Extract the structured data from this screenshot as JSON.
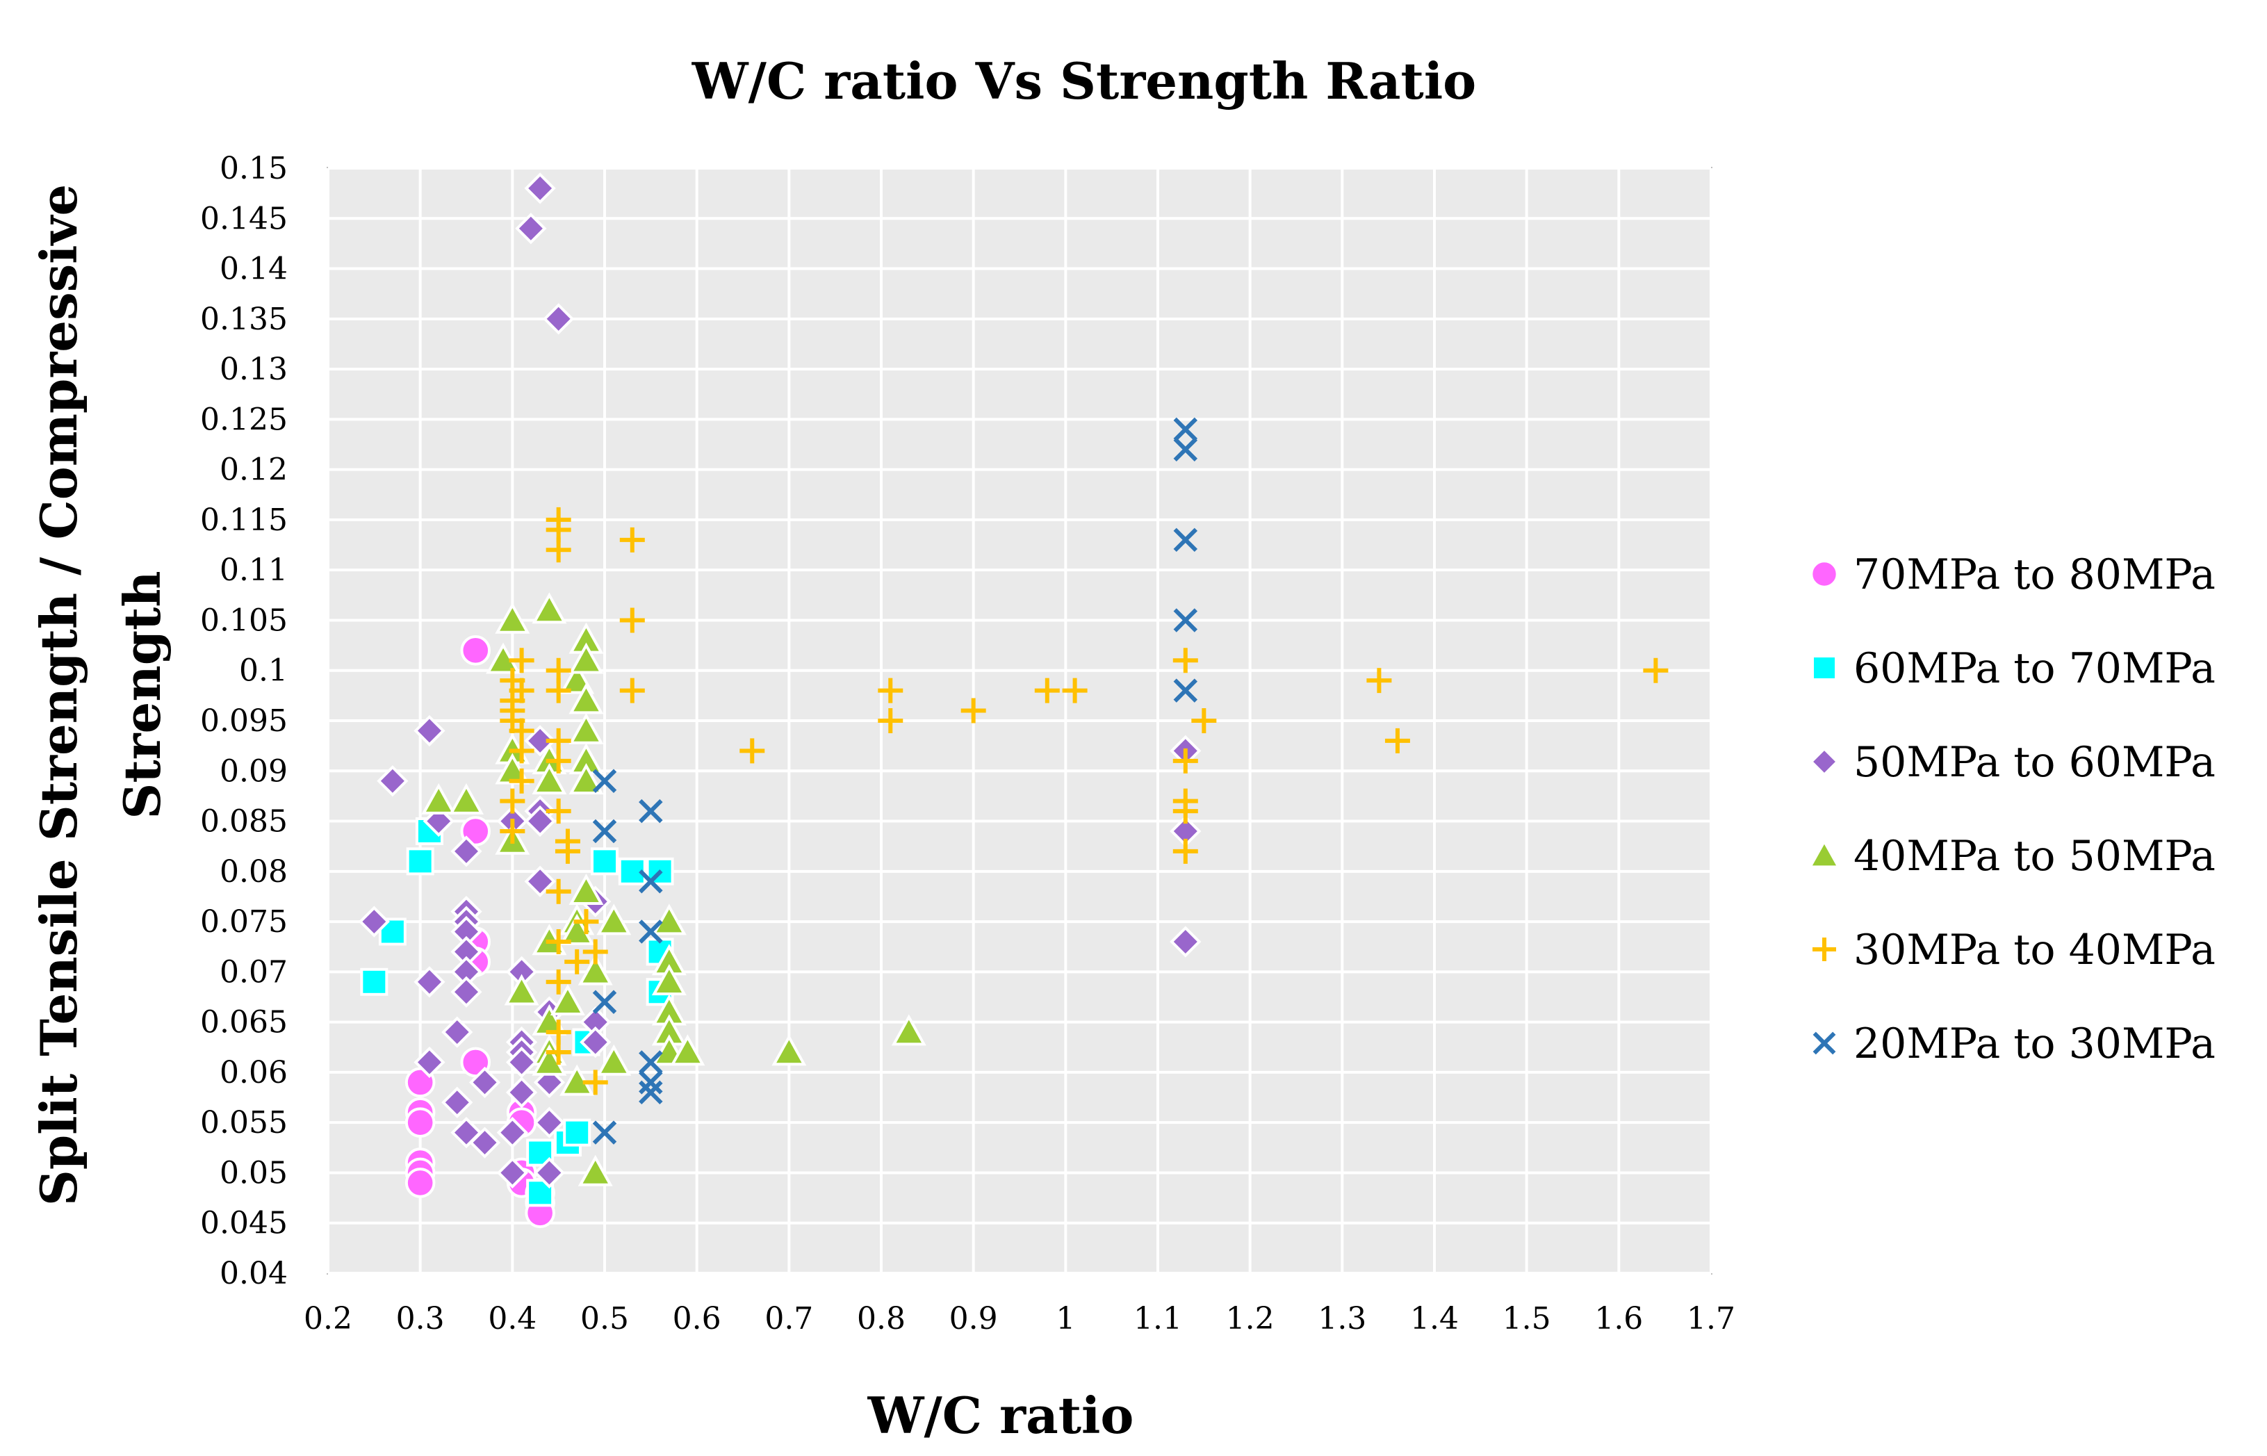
{
  "chart_data": {
    "type": "scatter",
    "title": "W/C ratio Vs Strength Ratio",
    "xlabel": "W/C ratio",
    "ylabel_lines": [
      "Split Tensile Strength / Compressive",
      "Strength"
    ],
    "xlim": [
      0.2,
      1.7
    ],
    "ylim": [
      0.04,
      0.15
    ],
    "xticks": [
      "0.2",
      "0.3",
      "0.4",
      "0.5",
      "0.6",
      "0.7",
      "0.8",
      "0.9",
      "1",
      "1.1",
      "1.2",
      "1.3",
      "1.4",
      "1.5",
      "1.6",
      "1.7"
    ],
    "yticks": [
      "0.04",
      "0.045",
      "0.05",
      "0.055",
      "0.06",
      "0.065",
      "0.07",
      "0.075",
      "0.08",
      "0.085",
      "0.09",
      "0.095",
      "0.1",
      "0.105",
      "0.11",
      "0.115",
      "0.12",
      "0.125",
      "0.13",
      "0.135",
      "0.14",
      "0.145",
      "0.15"
    ],
    "grid": true,
    "legend_position": "right",
    "series": [
      {
        "name": "70MPa to 80MPa",
        "marker": "circle",
        "color": "#FF66FF",
        "points": [
          [
            0.3,
            0.059
          ],
          [
            0.3,
            0.056
          ],
          [
            0.3,
            0.055
          ],
          [
            0.3,
            0.051
          ],
          [
            0.3,
            0.05
          ],
          [
            0.3,
            0.049
          ],
          [
            0.36,
            0.102
          ],
          [
            0.36,
            0.084
          ],
          [
            0.36,
            0.073
          ],
          [
            0.36,
            0.071
          ],
          [
            0.36,
            0.061
          ],
          [
            0.41,
            0.056
          ],
          [
            0.41,
            0.055
          ],
          [
            0.41,
            0.05
          ],
          [
            0.41,
            0.049
          ],
          [
            0.43,
            0.048
          ],
          [
            0.43,
            0.047
          ],
          [
            0.43,
            0.046
          ]
        ]
      },
      {
        "name": "60MPa to 70MPa",
        "marker": "square",
        "color": "#00FFFF",
        "points": [
          [
            0.25,
            0.069
          ],
          [
            0.27,
            0.074
          ],
          [
            0.3,
            0.081
          ],
          [
            0.31,
            0.084
          ],
          [
            0.43,
            0.052
          ],
          [
            0.43,
            0.048
          ],
          [
            0.46,
            0.053
          ],
          [
            0.47,
            0.054
          ],
          [
            0.48,
            0.063
          ],
          [
            0.5,
            0.081
          ],
          [
            0.53,
            0.08
          ],
          [
            0.56,
            0.08
          ],
          [
            0.56,
            0.072
          ],
          [
            0.56,
            0.068
          ]
        ]
      },
      {
        "name": "50MPa to 60MPa",
        "marker": "diamond",
        "color": "#9966CC",
        "points": [
          [
            0.25,
            0.075
          ],
          [
            0.27,
            0.089
          ],
          [
            0.31,
            0.094
          ],
          [
            0.31,
            0.069
          ],
          [
            0.31,
            0.061
          ],
          [
            0.32,
            0.085
          ],
          [
            0.34,
            0.064
          ],
          [
            0.34,
            0.057
          ],
          [
            0.35,
            0.082
          ],
          [
            0.35,
            0.076
          ],
          [
            0.35,
            0.075
          ],
          [
            0.35,
            0.074
          ],
          [
            0.35,
            0.072
          ],
          [
            0.35,
            0.07
          ],
          [
            0.35,
            0.068
          ],
          [
            0.35,
            0.054
          ],
          [
            0.37,
            0.059
          ],
          [
            0.37,
            0.053
          ],
          [
            0.4,
            0.085
          ],
          [
            0.4,
            0.054
          ],
          [
            0.4,
            0.05
          ],
          [
            0.41,
            0.07
          ],
          [
            0.41,
            0.063
          ],
          [
            0.41,
            0.062
          ],
          [
            0.41,
            0.061
          ],
          [
            0.41,
            0.058
          ],
          [
            0.42,
            0.144
          ],
          [
            0.43,
            0.148
          ],
          [
            0.43,
            0.093
          ],
          [
            0.43,
            0.086
          ],
          [
            0.43,
            0.085
          ],
          [
            0.43,
            0.079
          ],
          [
            0.44,
            0.066
          ],
          [
            0.44,
            0.059
          ],
          [
            0.44,
            0.055
          ],
          [
            0.44,
            0.05
          ],
          [
            0.45,
            0.135
          ],
          [
            0.49,
            0.077
          ],
          [
            0.49,
            0.065
          ],
          [
            0.49,
            0.063
          ],
          [
            1.13,
            0.092
          ],
          [
            1.13,
            0.084
          ],
          [
            1.13,
            0.073
          ]
        ]
      },
      {
        "name": "40MPa to 50MPa",
        "marker": "triangle",
        "color": "#99CC33",
        "points": [
          [
            0.32,
            0.087
          ],
          [
            0.35,
            0.087
          ],
          [
            0.39,
            0.101
          ],
          [
            0.4,
            0.105
          ],
          [
            0.4,
            0.092
          ],
          [
            0.4,
            0.09
          ],
          [
            0.4,
            0.083
          ],
          [
            0.41,
            0.068
          ],
          [
            0.44,
            0.106
          ],
          [
            0.44,
            0.091
          ],
          [
            0.44,
            0.089
          ],
          [
            0.44,
            0.073
          ],
          [
            0.44,
            0.065
          ],
          [
            0.44,
            0.062
          ],
          [
            0.44,
            0.061
          ],
          [
            0.46,
            0.067
          ],
          [
            0.47,
            0.099
          ],
          [
            0.47,
            0.075
          ],
          [
            0.47,
            0.074
          ],
          [
            0.47,
            0.059
          ],
          [
            0.48,
            0.103
          ],
          [
            0.48,
            0.101
          ],
          [
            0.48,
            0.097
          ],
          [
            0.48,
            0.094
          ],
          [
            0.48,
            0.091
          ],
          [
            0.48,
            0.089
          ],
          [
            0.48,
            0.078
          ],
          [
            0.49,
            0.07
          ],
          [
            0.49,
            0.05
          ],
          [
            0.51,
            0.075
          ],
          [
            0.51,
            0.061
          ],
          [
            0.57,
            0.075
          ],
          [
            0.57,
            0.071
          ],
          [
            0.57,
            0.069
          ],
          [
            0.57,
            0.066
          ],
          [
            0.57,
            0.064
          ],
          [
            0.57,
            0.062
          ],
          [
            0.59,
            0.062
          ],
          [
            0.7,
            0.062
          ],
          [
            0.83,
            0.064
          ]
        ]
      },
      {
        "name": "30MPa to 40MPa",
        "marker": "plus",
        "color": "#FFC000",
        "points": [
          [
            0.4,
            0.099
          ],
          [
            0.4,
            0.097
          ],
          [
            0.4,
            0.096
          ],
          [
            0.4,
            0.095
          ],
          [
            0.4,
            0.087
          ],
          [
            0.4,
            0.084
          ],
          [
            0.41,
            0.101
          ],
          [
            0.41,
            0.098
          ],
          [
            0.41,
            0.094
          ],
          [
            0.41,
            0.092
          ],
          [
            0.41,
            0.089
          ],
          [
            0.45,
            0.115
          ],
          [
            0.45,
            0.114
          ],
          [
            0.45,
            0.112
          ],
          [
            0.45,
            0.1
          ],
          [
            0.45,
            0.098
          ],
          [
            0.45,
            0.093
          ],
          [
            0.45,
            0.091
          ],
          [
            0.45,
            0.086
          ],
          [
            0.45,
            0.078
          ],
          [
            0.45,
            0.073
          ],
          [
            0.45,
            0.069
          ],
          [
            0.45,
            0.064
          ],
          [
            0.45,
            0.062
          ],
          [
            0.46,
            0.083
          ],
          [
            0.46,
            0.082
          ],
          [
            0.47,
            0.071
          ],
          [
            0.48,
            0.075
          ],
          [
            0.49,
            0.072
          ],
          [
            0.49,
            0.059
          ],
          [
            0.53,
            0.113
          ],
          [
            0.53,
            0.105
          ],
          [
            0.53,
            0.098
          ],
          [
            0.66,
            0.092
          ],
          [
            0.81,
            0.098
          ],
          [
            0.81,
            0.095
          ],
          [
            0.9,
            0.096
          ],
          [
            0.98,
            0.098
          ],
          [
            1.01,
            0.098
          ],
          [
            1.13,
            0.101
          ],
          [
            1.13,
            0.091
          ],
          [
            1.13,
            0.087
          ],
          [
            1.13,
            0.086
          ],
          [
            1.13,
            0.082
          ],
          [
            1.15,
            0.095
          ],
          [
            1.34,
            0.099
          ],
          [
            1.36,
            0.093
          ],
          [
            1.64,
            0.1
          ]
        ]
      },
      {
        "name": "20MPa to 30MPa",
        "marker": "x",
        "color": "#2E75B6",
        "points": [
          [
            0.5,
            0.089
          ],
          [
            0.5,
            0.084
          ],
          [
            0.5,
            0.067
          ],
          [
            0.5,
            0.054
          ],
          [
            0.55,
            0.086
          ],
          [
            0.55,
            0.079
          ],
          [
            0.55,
            0.074
          ],
          [
            0.55,
            0.061
          ],
          [
            0.55,
            0.059
          ],
          [
            0.55,
            0.058
          ],
          [
            1.13,
            0.124
          ],
          [
            1.13,
            0.122
          ],
          [
            1.13,
            0.113
          ],
          [
            1.13,
            0.105
          ],
          [
            1.13,
            0.098
          ]
        ]
      }
    ]
  }
}
